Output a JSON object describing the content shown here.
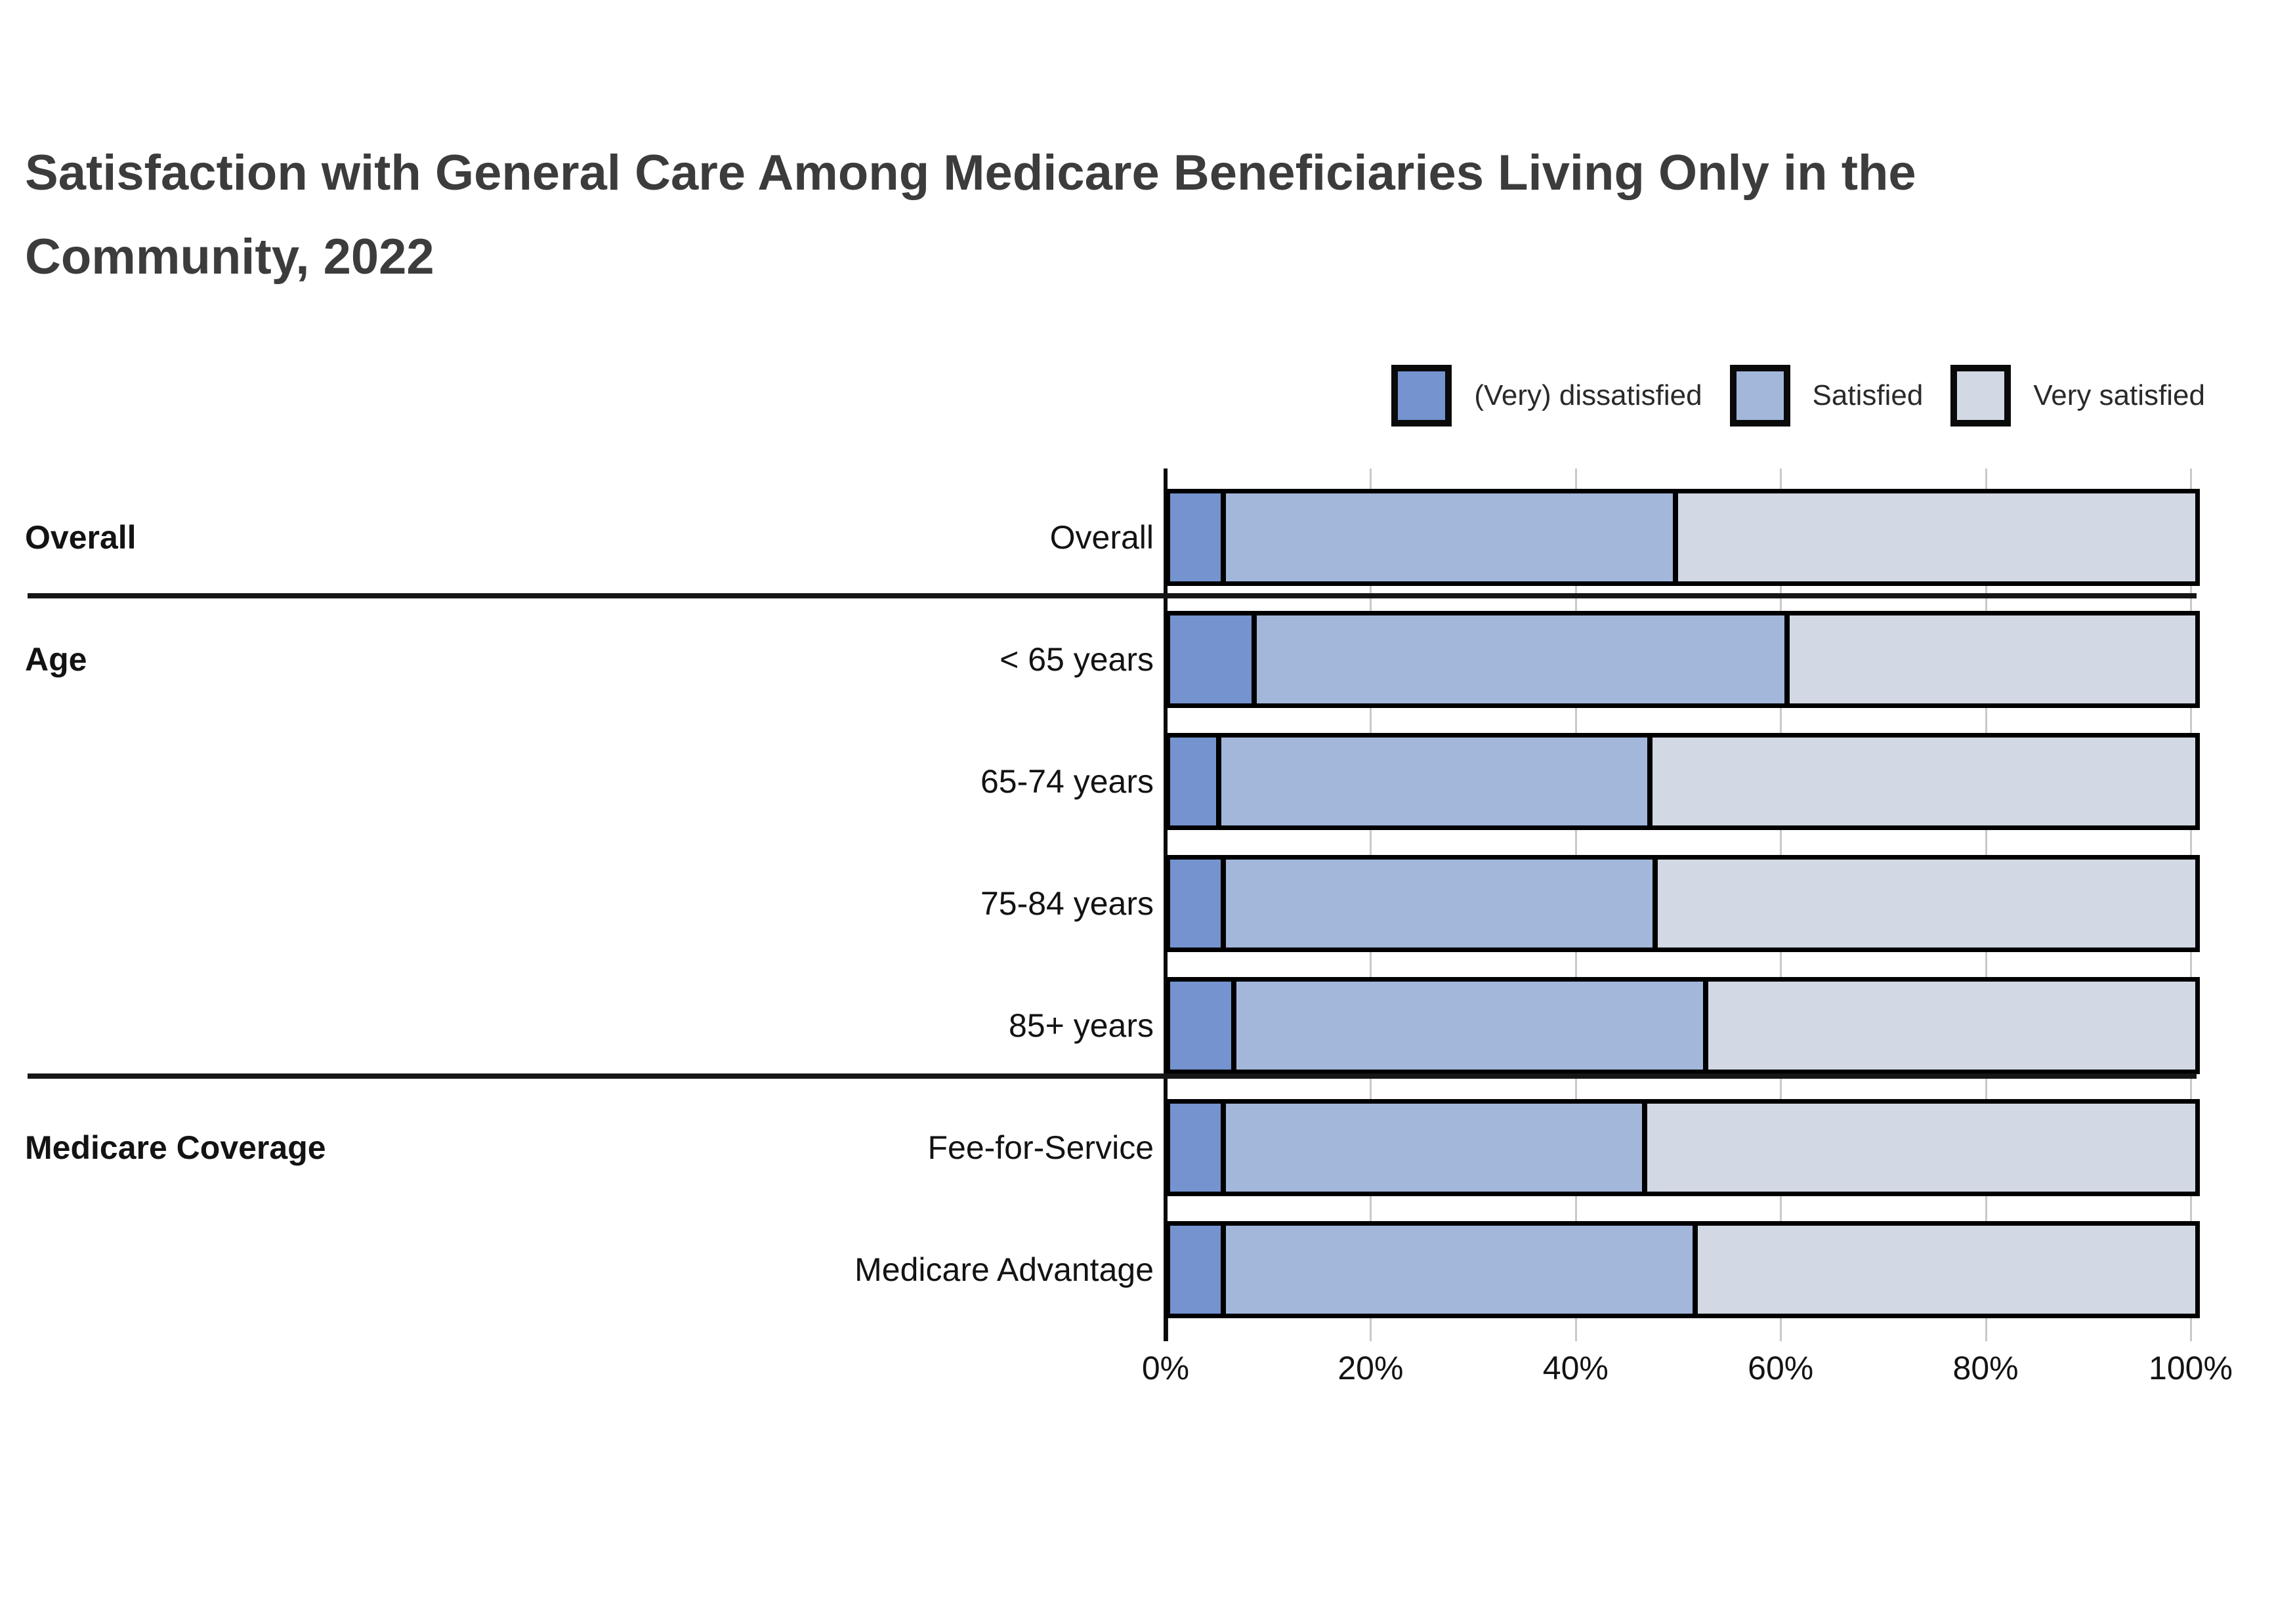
{
  "title": "Satisfaction with General Care Among Medicare Beneficiaries Living Only in the Community, 2022",
  "legend": {
    "items": [
      {
        "label": "(Very) dissatisfied",
        "color": "#7493CF"
      },
      {
        "label": "Satisfied",
        "color": "#A3B7DB"
      },
      {
        "label": "Very satisfied",
        "color": "#D2D9E4"
      }
    ]
  },
  "chart_data": {
    "type": "bar",
    "orientation": "horizontal",
    "stacked": true,
    "unit": "percent",
    "title": "Satisfaction with General Care Among Medicare Beneficiaries Living Only in the Community, 2022",
    "xlim": [
      0,
      100
    ],
    "x_tick_labels": [
      "0%",
      "20%",
      "40%",
      "60%",
      "80%",
      "100%"
    ],
    "x_tick_values": [
      0,
      20,
      40,
      60,
      80,
      100
    ],
    "grid": true,
    "legend_position": "top-right",
    "categories": [
      "Overall",
      "< 65 years",
      "65-74 years",
      "75-84 years",
      "85+ years",
      "Fee-for-Service",
      "Medicare Advantage"
    ],
    "groups": [
      {
        "label": "Overall",
        "categories": [
          "Overall"
        ]
      },
      {
        "label": "Age",
        "categories": [
          "< 65 years",
          "65-74 years",
          "75-84 years",
          "85+ years"
        ]
      },
      {
        "label": "Medicare Coverage",
        "categories": [
          "Fee-for-Service",
          "Medicare Advantage"
        ]
      }
    ],
    "series": [
      {
        "name": "(Very) dissatisfied",
        "color": "#7493CF",
        "values": [
          5,
          8,
          4.5,
          5,
          6,
          5,
          5
        ]
      },
      {
        "name": "Satisfied",
        "color": "#A3B7DB",
        "values": [
          44,
          52,
          42,
          42,
          46,
          41,
          46
        ]
      },
      {
        "name": "Very satisfied",
        "color": "#D2D9E4",
        "values": [
          51,
          40,
          53.5,
          53,
          48,
          54,
          49
        ]
      }
    ]
  }
}
